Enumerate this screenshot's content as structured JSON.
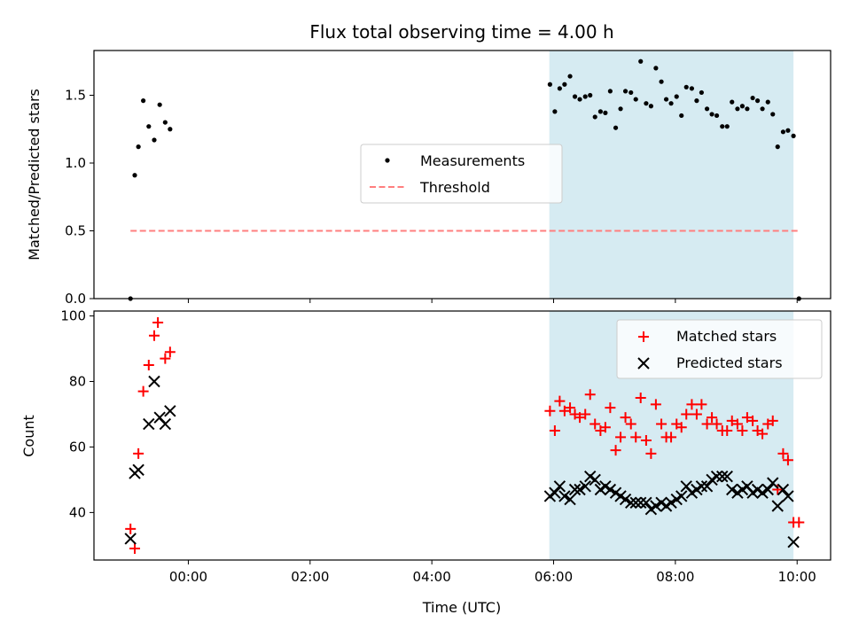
{
  "chart_data": {
    "title": "Flux total observing time = 4.00 h",
    "xlabel": "Time (UTC)",
    "x_unit": "hours since 00:00 UTC",
    "xlim": [
      -1.55,
      10.55
    ],
    "x_ticks": [
      0,
      2,
      4,
      6,
      8,
      10
    ],
    "x_tick_labels": [
      "00:00",
      "02:00",
      "04:00",
      "06:00",
      "08:00",
      "10:00"
    ],
    "observing_span": {
      "start": 5.93,
      "end": 9.94,
      "color": "#add8e6"
    },
    "top": {
      "type": "scatter",
      "ylabel": "Matched/Predicted stars",
      "ylim": [
        0,
        1.83
      ],
      "y_ticks": [
        0.0,
        0.5,
        1.0,
        1.5
      ],
      "y_tick_labels": [
        "0.0",
        "0.5",
        "1.0",
        "1.5"
      ],
      "legend": {
        "position": "center",
        "entries": [
          "Measurements",
          "Threshold"
        ]
      },
      "threshold": {
        "name": "Threshold",
        "y": 0.5,
        "x_range": [
          -0.95,
          10.05
        ],
        "color": "#ff7f7f"
      },
      "measurements": {
        "name": "Measurements",
        "color": "#000000",
        "x": [
          -0.95,
          -0.88,
          -0.82,
          -0.74,
          -0.65,
          -0.56,
          -0.47,
          -0.38,
          -0.3,
          5.94,
          6.02,
          6.1,
          6.18,
          6.27,
          6.35,
          6.43,
          6.52,
          6.6,
          6.68,
          6.77,
          6.85,
          6.93,
          7.02,
          7.1,
          7.18,
          7.27,
          7.35,
          7.43,
          7.52,
          7.6,
          7.68,
          7.77,
          7.85,
          7.93,
          8.02,
          8.1,
          8.18,
          8.27,
          8.35,
          8.43,
          8.52,
          8.6,
          8.68,
          8.77,
          8.85,
          8.93,
          9.02,
          9.1,
          9.18,
          9.27,
          9.35,
          9.43,
          9.52,
          9.6,
          9.68,
          9.77,
          9.85,
          9.94,
          10.03
        ],
        "y": [
          0.0,
          0.91,
          1.12,
          1.46,
          1.27,
          1.17,
          1.43,
          1.3,
          1.25,
          1.58,
          1.38,
          1.55,
          1.58,
          1.64,
          1.49,
          1.47,
          1.49,
          1.5,
          1.34,
          1.38,
          1.37,
          1.53,
          1.26,
          1.4,
          1.53,
          1.52,
          1.47,
          1.75,
          1.44,
          1.42,
          1.7,
          1.6,
          1.47,
          1.44,
          1.49,
          1.35,
          1.56,
          1.55,
          1.46,
          1.52,
          1.4,
          1.36,
          1.35,
          1.27,
          1.27,
          1.45,
          1.4,
          1.42,
          1.4,
          1.48,
          1.46,
          1.4,
          1.45,
          1.36,
          1.12,
          1.23,
          1.24,
          1.2,
          0.0
        ]
      }
    },
    "bottom": {
      "type": "scatter",
      "ylabel": "Count",
      "ylim": [
        25.5,
        101.5
      ],
      "y_ticks": [
        40,
        60,
        80,
        100
      ],
      "y_tick_labels": [
        "40",
        "60",
        "80",
        "100"
      ],
      "legend": {
        "position": "upper right",
        "entries": [
          "Matched stars",
          "Predicted stars"
        ]
      },
      "series": [
        {
          "name": "Matched stars",
          "marker": "+",
          "color": "#ff0000",
          "x": [
            -0.95,
            -0.88,
            -0.82,
            -0.74,
            -0.65,
            -0.56,
            -0.5,
            -0.38,
            -0.3,
            5.94,
            6.02,
            6.1,
            6.18,
            6.27,
            6.35,
            6.43,
            6.52,
            6.6,
            6.68,
            6.77,
            6.85,
            6.93,
            7.02,
            7.1,
            7.18,
            7.27,
            7.35,
            7.43,
            7.52,
            7.6,
            7.68,
            7.77,
            7.85,
            7.93,
            8.02,
            8.1,
            8.18,
            8.27,
            8.35,
            8.43,
            8.52,
            8.6,
            8.68,
            8.77,
            8.85,
            8.93,
            9.02,
            9.1,
            9.18,
            9.27,
            9.35,
            9.43,
            9.52,
            9.6,
            9.68,
            9.77,
            9.85,
            9.94,
            10.03
          ],
          "y": [
            35,
            29,
            58,
            77,
            85,
            94,
            98,
            87,
            89,
            71,
            65,
            74,
            71,
            72,
            70,
            69,
            70,
            76,
            67,
            65,
            66,
            72,
            59,
            63,
            69,
            67,
            63,
            75,
            62,
            58,
            73,
            67,
            63,
            63,
            67,
            66,
            70,
            73,
            70,
            73,
            67,
            69,
            67,
            65,
            65,
            68,
            67,
            65,
            69,
            68,
            65,
            64,
            67,
            68,
            47,
            58,
            56,
            37,
            37
          ]
        },
        {
          "name": "Predicted stars",
          "marker": "x",
          "color": "#000000",
          "x": [
            -0.95,
            -0.88,
            -0.82,
            -0.65,
            -0.56,
            -0.47,
            -0.38,
            -0.3,
            5.94,
            6.02,
            6.1,
            6.18,
            6.27,
            6.35,
            6.43,
            6.52,
            6.6,
            6.68,
            6.77,
            6.85,
            6.93,
            7.02,
            7.1,
            7.18,
            7.27,
            7.35,
            7.43,
            7.52,
            7.6,
            7.68,
            7.77,
            7.85,
            7.93,
            8.02,
            8.1,
            8.18,
            8.27,
            8.35,
            8.43,
            8.52,
            8.6,
            8.68,
            8.77,
            8.85,
            8.93,
            9.02,
            9.1,
            9.18,
            9.27,
            9.35,
            9.43,
            9.52,
            9.6,
            9.68,
            9.77,
            9.85,
            9.94
          ],
          "y": [
            32,
            52,
            53,
            67,
            80,
            69,
            67,
            71,
            45,
            46,
            48,
            45,
            44,
            47,
            47,
            48,
            51,
            50,
            47,
            48,
            47,
            46,
            45,
            44,
            43,
            43,
            43,
            43,
            41,
            42,
            43,
            42,
            43,
            44,
            45,
            48,
            46,
            47,
            48,
            48,
            50,
            51,
            51,
            51,
            47,
            46,
            47,
            48,
            46,
            47,
            46,
            47,
            49,
            42,
            47,
            45,
            31
          ]
        }
      ]
    }
  }
}
